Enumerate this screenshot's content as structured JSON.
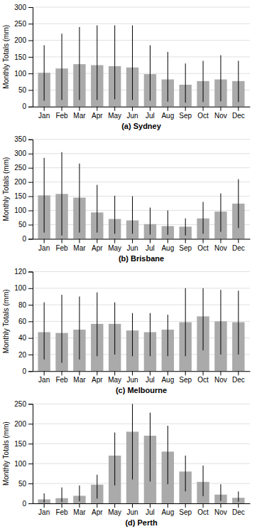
{
  "chart_data": [
    {
      "type": "bar",
      "xlabel": "(a) Sydney",
      "ylabel": "Monthly Totals (mm)",
      "categories": [
        "Jan",
        "Feb",
        "Mar",
        "Apr",
        "May",
        "Jun",
        "Jul",
        "Aug",
        "Sep",
        "Oct",
        "Nov",
        "Dec"
      ],
      "values": [
        102,
        115,
        128,
        125,
        122,
        118,
        98,
        82,
        66,
        77,
        82,
        77
      ],
      "top_whiskers": [
        185,
        220,
        240,
        245,
        245,
        245,
        185,
        165,
        130,
        138,
        155,
        138
      ],
      "bottom_whiskers": [
        18,
        20,
        20,
        20,
        22,
        20,
        18,
        15,
        12,
        14,
        16,
        14
      ],
      "color": "#aaaaaa",
      "ylim": [
        0,
        300
      ],
      "yticks": [
        0,
        50,
        100,
        150,
        200,
        250,
        300
      ],
      "grid": true
    },
    {
      "type": "bar",
      "xlabel": "(b) Brisbane",
      "ylabel": "Monthly Totals (mm)",
      "categories": [
        "Jan",
        "Feb",
        "Mar",
        "Apr",
        "May",
        "Jun",
        "Jul",
        "Aug",
        "Sep",
        "Oct",
        "Nov",
        "Dec"
      ],
      "values": [
        153,
        158,
        145,
        93,
        70,
        65,
        52,
        45,
        43,
        72,
        96,
        124
      ],
      "top_whiskers": [
        285,
        305,
        265,
        190,
        152,
        150,
        110,
        100,
        72,
        130,
        160,
        210
      ],
      "bottom_whiskers": [
        22,
        12,
        22,
        22,
        18,
        18,
        15,
        14,
        12,
        18,
        25,
        38
      ],
      "color": "#aaaaaa",
      "ylim": [
        0,
        350
      ],
      "yticks": [
        0,
        50,
        100,
        150,
        200,
        250,
        300,
        350
      ],
      "grid": true
    },
    {
      "type": "bar",
      "xlabel": "(c) Melbourne",
      "ylabel": "Monthly Totals (mm)",
      "categories": [
        "Jan",
        "Feb",
        "Mar",
        "Apr",
        "May",
        "Jun",
        "Jul",
        "Aug",
        "Sep",
        "Oct",
        "Nov",
        "Dec"
      ],
      "values": [
        47,
        46,
        50,
        57,
        57,
        49,
        47,
        50,
        59,
        66,
        60,
        59
      ],
      "top_whiskers": [
        83,
        92,
        90,
        95,
        83,
        70,
        70,
        68,
        100,
        100,
        98,
        97
      ],
      "bottom_whiskers": [
        14,
        10,
        14,
        18,
        20,
        18,
        18,
        18,
        18,
        25,
        20,
        20
      ],
      "color": "#aaaaaa",
      "ylim": [
        0,
        120
      ],
      "yticks": [
        0,
        20,
        40,
        60,
        80,
        100,
        120
      ],
      "grid": true
    },
    {
      "type": "bar",
      "xlabel": "(d) Perth",
      "ylabel": "Monthly Totals (mm)",
      "categories": [
        "Jan",
        "Feb",
        "Mar",
        "Apr",
        "May",
        "Jun",
        "Jul",
        "Aug",
        "Sep",
        "Oct",
        "Nov",
        "Dec"
      ],
      "values": [
        10,
        13,
        19,
        47,
        120,
        180,
        170,
        130,
        80,
        54,
        22,
        14
      ],
      "top_whiskers": [
        25,
        40,
        45,
        72,
        178,
        250,
        228,
        195,
        120,
        95,
        48,
        30
      ],
      "bottom_whiskers": [
        2,
        3,
        5,
        12,
        45,
        60,
        55,
        48,
        30,
        18,
        6,
        4
      ],
      "color": "#aaaaaa",
      "ylim": [
        0,
        250
      ],
      "yticks": [
        0,
        50,
        100,
        150,
        200,
        250
      ],
      "grid": true
    }
  ]
}
